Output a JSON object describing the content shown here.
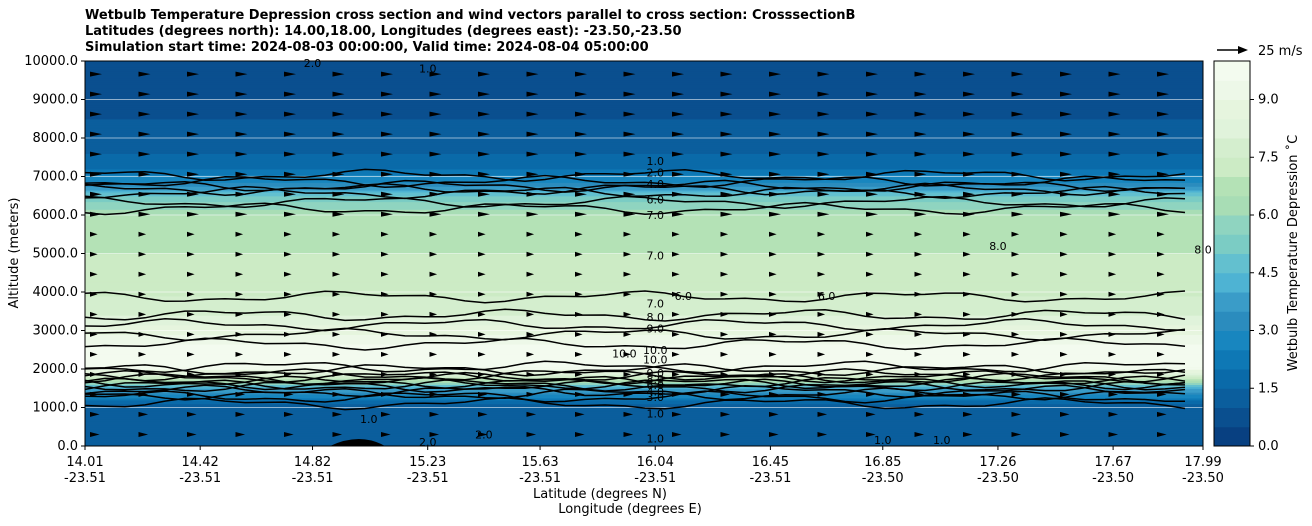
{
  "title_lines": [
    "Wetbulb Temperature Depression cross section and wind vectors parallel to cross section: CrosssectionB",
    "Latitudes (degrees north): 14.00,18.00, Longitudes (degrees east): -23.50,-23.50",
    "Simulation start time: 2024-08-03 00:00:00, Valid time: 2024-08-04 05:00:00"
  ],
  "chart_data": {
    "type": "contour",
    "ylabel": "Altitude (meters)",
    "xlabel_lines": [
      "Latitude (degrees N)",
      "Longitude (degrees E)"
    ],
    "ylim": [
      0,
      10000
    ],
    "yticks": [
      0,
      1000,
      2000,
      3000,
      4000,
      5000,
      6000,
      7000,
      8000,
      9000,
      10000
    ],
    "ytick_labels": [
      "0.0",
      "1000.0",
      "2000.0",
      "3000.0",
      "4000.0",
      "5000.0",
      "6000.0",
      "7000.0",
      "8000.0",
      "9000.0",
      "10000.0"
    ],
    "xticks": [
      {
        "lat": "14.01",
        "lon": "-23.51"
      },
      {
        "lat": "14.42",
        "lon": "-23.51"
      },
      {
        "lat": "14.82",
        "lon": "-23.51"
      },
      {
        "lat": "15.23",
        "lon": "-23.51"
      },
      {
        "lat": "15.63",
        "lon": "-23.51"
      },
      {
        "lat": "16.04",
        "lon": "-23.51"
      },
      {
        "lat": "16.45",
        "lon": "-23.51"
      },
      {
        "lat": "16.85",
        "lon": "-23.50"
      },
      {
        "lat": "17.26",
        "lon": "-23.50"
      },
      {
        "lat": "17.67",
        "lon": "-23.50"
      },
      {
        "lat": "17.99",
        "lon": "-23.50"
      }
    ],
    "colorbar": {
      "label": "Wetbulb Temperature Depression ˚C",
      "range": [
        0,
        10
      ],
      "ticks": [
        0,
        1.5,
        3,
        4.5,
        6,
        7.5,
        9
      ],
      "tick_labels": [
        "0.0",
        "1.5",
        "3.0",
        "4.5",
        "6.0",
        "7.5",
        "9.0"
      ],
      "levels": 20,
      "colors": [
        "#084081",
        "#0a4f8f",
        "#0b5e9d",
        "#0a6aa9",
        "#0e78b5",
        "#1886bf",
        "#2b8cbe",
        "#3a9cc8",
        "#4eb3d3",
        "#63c0cf",
        "#7bccc4",
        "#8fd4c0",
        "#a8ddb5",
        "#b4e2b6",
        "#ccebc5",
        "#d4eece",
        "#e0f3db",
        "#e6f5de",
        "#edf8e8",
        "#f3fbef"
      ]
    },
    "profile": {
      "altitude_m": [
        0,
        500,
        1000,
        1200,
        1500,
        1700,
        1900,
        2100,
        2300,
        2600,
        3000,
        3500,
        4000,
        4500,
        5000,
        5500,
        6000,
        6500,
        6800,
        7200,
        7600,
        8000,
        8500,
        9000,
        10000
      ],
      "depression_c": [
        1.5,
        1.2,
        1.0,
        2.0,
        4.0,
        6.5,
        8.5,
        9.8,
        10.0,
        9.6,
        8.8,
        7.8,
        7.4,
        7.2,
        7.0,
        6.8,
        6.5,
        5.0,
        3.2,
        2.0,
        1.5,
        1.2,
        1.0,
        0.9,
        1.0
      ]
    },
    "contour_labels": [
      {
        "text": "1.0",
        "x_lat": 16.04,
        "alt": 7400
      },
      {
        "text": "2.0",
        "x_lat": 16.04,
        "alt": 7100
      },
      {
        "text": "4.0",
        "x_lat": 16.04,
        "alt": 6800
      },
      {
        "text": "6.0",
        "x_lat": 16.04,
        "alt": 6400
      },
      {
        "text": "7.0",
        "x_lat": 16.04,
        "alt": 6000
      },
      {
        "text": "7.0",
        "x_lat": 16.04,
        "alt": 4950
      },
      {
        "text": "7.0",
        "x_lat": 16.04,
        "alt": 3700
      },
      {
        "text": "8.0",
        "x_lat": 16.04,
        "alt": 3350
      },
      {
        "text": "9.0",
        "x_lat": 16.04,
        "alt": 3050
      },
      {
        "text": "10.0",
        "x_lat": 16.04,
        "alt": 2500
      },
      {
        "text": "10.0",
        "x_lat": 15.93,
        "alt": 2400
      },
      {
        "text": "10.0",
        "x_lat": 16.04,
        "alt": 2250
      },
      {
        "text": "9.0",
        "x_lat": 16.04,
        "alt": 1900
      },
      {
        "text": "8.0",
        "x_lat": 16.04,
        "alt": 1740
      },
      {
        "text": "6.0",
        "x_lat": 16.04,
        "alt": 1580
      },
      {
        "text": "4.0",
        "x_lat": 16.04,
        "alt": 1420
      },
      {
        "text": "3.0",
        "x_lat": 16.04,
        "alt": 1270
      },
      {
        "text": "1.0",
        "x_lat": 16.04,
        "alt": 850
      },
      {
        "text": "1.0",
        "x_lat": 16.04,
        "alt": 200
      },
      {
        "text": "8.0",
        "x_lat": 17.26,
        "alt": 5200
      },
      {
        "text": "8.0",
        "x_lat": 17.99,
        "alt": 5100
      },
      {
        "text": "6.0",
        "x_lat": 16.14,
        "alt": 3900
      },
      {
        "text": "6.0",
        "x_lat": 16.65,
        "alt": 3900
      },
      {
        "text": "1.0",
        "x_lat": 15.02,
        "alt": 700
      },
      {
        "text": "2.0",
        "x_lat": 15.23,
        "alt": 100
      },
      {
        "text": "2.0",
        "x_lat": 15.43,
        "alt": 300
      },
      {
        "text": "1.0",
        "x_lat": 16.85,
        "alt": 150
      },
      {
        "text": "1.0",
        "x_lat": 17.06,
        "alt": 150
      },
      {
        "text": "2.0",
        "x_lat": 14.82,
        "alt": 9950
      },
      {
        "text": "1.0",
        "x_lat": 15.23,
        "alt": 9800
      }
    ],
    "wind_key": {
      "label": "25 m/s",
      "speed_ms": 25
    }
  }
}
